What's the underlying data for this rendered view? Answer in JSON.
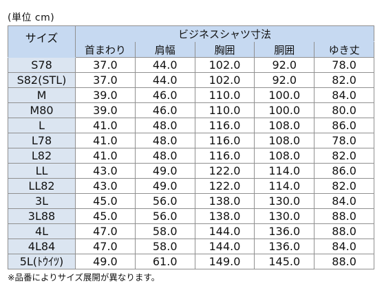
{
  "unit_label": "(単位 cm)",
  "table": {
    "size_header": "サイズ",
    "group_header": "ビジネスシャツ寸法",
    "columns": [
      "首まわり",
      "肩幅",
      "胸囲",
      "胴囲",
      "ゆき丈"
    ],
    "rows": [
      {
        "size": "S78",
        "values": [
          "37.0",
          "44.0",
          "102.0",
          "92.0",
          "78.0"
        ]
      },
      {
        "size": "S82(STL)",
        "values": [
          "37.0",
          "44.0",
          "102.0",
          "92.0",
          "82.0"
        ]
      },
      {
        "size": "M",
        "values": [
          "39.0",
          "46.0",
          "110.0",
          "100.0",
          "84.0"
        ]
      },
      {
        "size": "M80",
        "values": [
          "39.0",
          "46.0",
          "110.0",
          "100.0",
          "80.0"
        ]
      },
      {
        "size": "L",
        "values": [
          "41.0",
          "48.0",
          "116.0",
          "108.0",
          "86.0"
        ]
      },
      {
        "size": "L78",
        "values": [
          "41.0",
          "48.0",
          "116.0",
          "108.0",
          "78.0"
        ]
      },
      {
        "size": "L82",
        "values": [
          "41.0",
          "48.0",
          "116.0",
          "108.0",
          "82.0"
        ]
      },
      {
        "size": "LL",
        "values": [
          "43.0",
          "49.0",
          "122.0",
          "114.0",
          "86.0"
        ]
      },
      {
        "size": "LL82",
        "values": [
          "43.0",
          "49.0",
          "122.0",
          "114.0",
          "82.0"
        ]
      },
      {
        "size": "3L",
        "values": [
          "45.0",
          "56.0",
          "138.0",
          "130.0",
          "84.0"
        ]
      },
      {
        "size": "3L88",
        "values": [
          "45.0",
          "56.0",
          "138.0",
          "130.0",
          "88.0"
        ]
      },
      {
        "size": "4L",
        "values": [
          "47.0",
          "58.0",
          "144.0",
          "136.0",
          "88.0"
        ]
      },
      {
        "size": "4L84",
        "values": [
          "47.0",
          "58.0",
          "144.0",
          "136.0",
          "84.0"
        ]
      },
      {
        "size": "5L(ﾄｳｲﾂ)",
        "values": [
          "49.0",
          "61.0",
          "149.0",
          "145.0",
          "88.0"
        ]
      }
    ]
  },
  "note": "※品番によりサイズ展開が異なります。",
  "colors": {
    "header_bg": "#c6d9f1",
    "size_column_bg": "#dbe5f1",
    "border": "#8f8f8f"
  }
}
